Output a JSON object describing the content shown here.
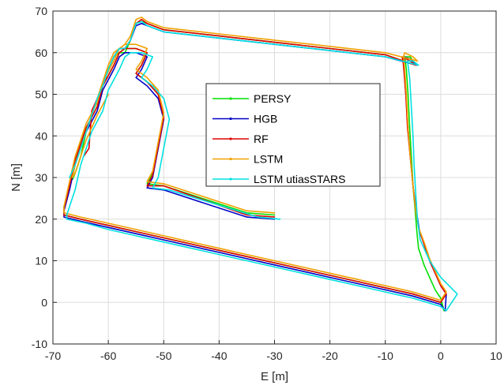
{
  "chart_data": {
    "type": "line",
    "title": "",
    "xlabel": "E [m]",
    "ylabel": "N [m]",
    "xlim": [
      -70,
      10
    ],
    "ylim": [
      -10,
      70
    ],
    "xticks": [
      "-70",
      "-60",
      "-50",
      "-40",
      "-30",
      "-20",
      "-10",
      "0",
      "10"
    ],
    "yticks": [
      "-10",
      "0",
      "10",
      "20",
      "30",
      "40",
      "50",
      "60",
      "70"
    ],
    "grid": true,
    "legend_position": "upper-center inside axes",
    "series": [
      {
        "name": "PERSY",
        "color": "#00e000",
        "x": [
          -30,
          -35,
          -50,
          -53,
          -52,
          -50,
          -51,
          -53,
          -55,
          -54,
          -53,
          -55,
          -57,
          -58,
          -59,
          -61,
          -62,
          -64,
          -65,
          -66,
          -67,
          -68,
          -68,
          -65,
          -60,
          -55,
          -50,
          -45,
          -40,
          -35,
          -30,
          -25,
          -20,
          -15,
          -10,
          -5,
          0,
          0.6,
          0,
          -1,
          -2,
          -3,
          -4,
          -4.3,
          -4.6,
          -5,
          -5.3,
          -5.6,
          -5.9,
          -6.2,
          -6.5,
          -5.5,
          -4.5,
          -10,
          -20,
          -30,
          -40,
          -50,
          -53,
          -54,
          -55,
          -56,
          -57,
          -58,
          -59,
          -60,
          -61,
          -62,
          -63,
          -63.5,
          -64,
          -64.5,
          -65,
          -65.5,
          -66,
          -66.3,
          -66.5
        ],
        "y": [
          21,
          21.5,
          28,
          28.5,
          31,
          45,
          50,
          53,
          55,
          57,
          60,
          61,
          61,
          60,
          57,
          52,
          47,
          42,
          38,
          34,
          28,
          23,
          21,
          20,
          18.5,
          17,
          15.5,
          14,
          12.5,
          11,
          9.5,
          8,
          6.5,
          5,
          3.5,
          2,
          0,
          -2,
          1,
          3,
          6,
          9,
          13,
          17,
          22,
          28,
          35,
          42,
          50,
          56,
          59,
          59,
          57,
          59.5,
          61,
          62.5,
          64,
          65.5,
          67,
          67.5,
          67,
          63,
          60,
          60,
          59,
          56,
          52,
          49,
          45,
          43,
          41,
          38,
          35,
          33,
          31,
          30,
          29.5
        ]
      },
      {
        "name": "HGB",
        "color": "#0000c8",
        "x": [
          -30,
          -35,
          -50,
          -53,
          -52,
          -50,
          -51,
          -53,
          -55,
          -54,
          -53,
          -55,
          -57,
          -58,
          -59,
          -61,
          -62,
          -64,
          -65,
          -66,
          -67,
          -68,
          -68,
          -65,
          -60,
          -55,
          -50,
          -45,
          -40,
          -35,
          -30,
          -25,
          -20,
          -15,
          -10,
          -5,
          0,
          0.8,
          1,
          0,
          -1,
          -2,
          -3,
          -3.8,
          -4.4,
          -5,
          -5.5,
          -5.9,
          -6.3,
          -6.6,
          -6.8,
          -5.5,
          -4.3,
          -10,
          -20,
          -30,
          -40,
          -50,
          -53,
          -54,
          -55,
          -56,
          -57,
          -58
        ],
        "y": [
          20,
          20.5,
          27,
          27.5,
          30,
          44,
          49,
          52,
          54,
          56,
          59,
          60,
          60,
          59,
          56,
          51,
          46,
          41,
          37,
          33,
          27,
          22,
          20.5,
          19.5,
          18,
          16.5,
          15,
          13.5,
          12,
          10.5,
          9,
          7.5,
          6,
          4.5,
          3,
          1.5,
          -0.5,
          -2,
          2,
          4,
          7,
          10,
          14,
          17,
          22,
          28,
          35,
          42,
          50,
          56,
          59,
          58.5,
          57,
          59,
          60.5,
          62,
          63.5,
          65,
          66.5,
          67,
          66.5,
          63,
          61,
          61
        ]
      },
      {
        "name": "RF",
        "color": "#e00000",
        "x": [
          -30,
          -35,
          -50,
          -53,
          -52,
          -50,
          -51,
          -53,
          -55,
          -54,
          -53,
          -55,
          -57,
          -58,
          -59,
          -61,
          -62,
          -64,
          -65,
          -66,
          -67,
          -68,
          -68,
          -65,
          -60,
          -55,
          -50,
          -45,
          -40,
          -35,
          -30,
          -25,
          -20,
          -15,
          -10,
          -5,
          0,
          1,
          0,
          -1,
          -2,
          -3,
          -4,
          -4.5,
          -5,
          -5.5,
          -6,
          -6.3,
          -6.6,
          -6.8,
          -7,
          -5.5,
          -4.5,
          -10,
          -20,
          -30,
          -40,
          -50,
          -53,
          -54,
          -55,
          -56,
          -57,
          -58,
          -59,
          -60,
          -61,
          -62,
          -63,
          -63.5,
          -64,
          -64.5
        ],
        "y": [
          20.5,
          21,
          28,
          28,
          30.5,
          44.5,
          50,
          53,
          55,
          57,
          60,
          61,
          61,
          60,
          57,
          52,
          47,
          42,
          38,
          34,
          28,
          22.5,
          21,
          20,
          18.5,
          17,
          15.5,
          14,
          12.5,
          11,
          9.5,
          8,
          6.5,
          5,
          3.5,
          2,
          0,
          2,
          4,
          7,
          10,
          14,
          18,
          22,
          28,
          35,
          42,
          50,
          55,
          58,
          59,
          58,
          57,
          59.5,
          61,
          62.5,
          64,
          65.5,
          67,
          68,
          67,
          63,
          61,
          61,
          59,
          56,
          52,
          49,
          46,
          37,
          36,
          35
        ]
      },
      {
        "name": "LSTM",
        "color": "#f0a000",
        "x": [
          -30,
          -35,
          -50,
          -53,
          -52,
          -50,
          -51,
          -53,
          -55,
          -54,
          -53,
          -55,
          -57,
          -58,
          -59,
          -61,
          -62,
          -64,
          -65,
          -66,
          -67,
          -68,
          -68,
          -65,
          -60,
          -55,
          -50,
          -45,
          -40,
          -35,
          -30,
          -25,
          -20,
          -15,
          -10,
          -5,
          0,
          1,
          0,
          -1,
          -2,
          -3,
          -4,
          -4.5,
          -5,
          -5.5,
          -5.9,
          -6.2,
          -6.5,
          -6.7,
          -6.5,
          -5,
          -4.2,
          -10,
          -20,
          -30,
          -40,
          -50,
          -53,
          -54,
          -55,
          -56,
          -57,
          -58,
          -59,
          -60,
          -61,
          -62,
          -63,
          -64,
          -65,
          -66,
          -66.5,
          -66,
          -64,
          -62,
          -60
        ],
        "y": [
          21.5,
          22,
          28.5,
          29,
          31.5,
          45.5,
          51,
          54,
          56,
          58,
          61,
          62,
          62,
          61,
          58,
          53,
          48,
          43,
          39,
          35,
          29,
          23,
          21.5,
          20.5,
          19,
          17.5,
          16,
          14.5,
          13,
          11.5,
          10,
          8.5,
          7,
          5.5,
          4,
          2.5,
          0.5,
          2.5,
          4.5,
          7.5,
          10.5,
          14.5,
          18,
          22,
          28,
          35,
          42,
          50,
          56,
          59,
          60,
          59,
          58,
          60,
          61.5,
          63,
          64.5,
          66,
          67.5,
          68.5,
          68,
          64,
          62,
          61,
          60,
          57,
          53,
          49,
          45,
          41,
          37,
          33,
          30,
          31,
          39,
          45,
          50
        ]
      },
      {
        "name": "LSTM utiasSTARS",
        "color": "#00e0e0",
        "x": [
          -29,
          -33,
          -49,
          -52,
          -51,
          -49,
          -50,
          -52,
          -54,
          -53,
          -52,
          -54,
          -56,
          -57,
          -58,
          -60,
          -61,
          -63,
          -64,
          -65,
          -66,
          -67.5,
          -67.5,
          -64,
          -60,
          -55,
          -50,
          -45,
          -40,
          -35,
          -30,
          -25,
          -20,
          -15,
          -10,
          -5,
          0,
          1,
          3,
          0,
          -2,
          -3,
          -3.7,
          -4.2,
          -4.5,
          -4.8,
          -5,
          -5.3,
          -5.6,
          -6,
          -5,
          -4,
          -10,
          -20,
          -30,
          -40,
          -50,
          -53,
          -54,
          -55,
          -56,
          -57,
          -58,
          -59,
          -60,
          -61,
          -62,
          -63,
          -64,
          -65,
          -66,
          -67
        ],
        "y": [
          20,
          20.5,
          27,
          27.5,
          30,
          44,
          49,
          52,
          54,
          56,
          59,
          60,
          60,
          59,
          56,
          51,
          46,
          41,
          37,
          33,
          27,
          21,
          20,
          19,
          17.5,
          16,
          14.5,
          13,
          11.5,
          10,
          8.5,
          7,
          5.5,
          4,
          2.5,
          1,
          -1,
          -2,
          2,
          6,
          10,
          13,
          15,
          20,
          26,
          33,
          40,
          47,
          54,
          58,
          58,
          57,
          59,
          60.5,
          62,
          63.5,
          65,
          66.5,
          67.5,
          67,
          63,
          61,
          61,
          59,
          56,
          52,
          49,
          45,
          41,
          37,
          33,
          30
        ]
      }
    ]
  }
}
